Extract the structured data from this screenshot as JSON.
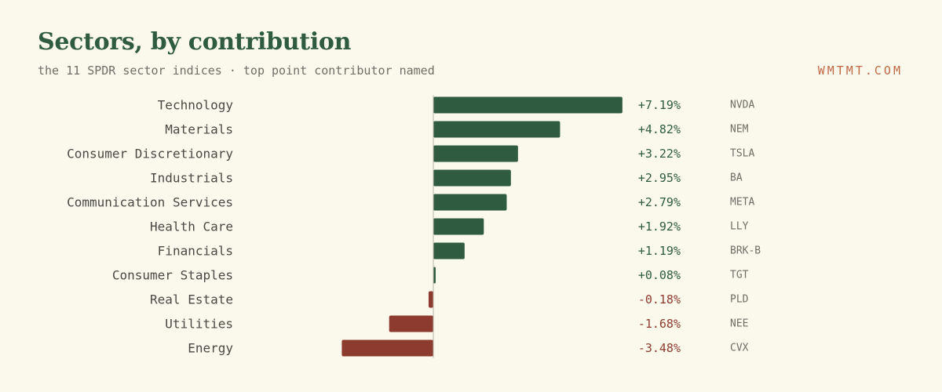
{
  "header": {
    "title": "Sectors, by contribution",
    "subtitle": "the 11 SPDR sector indices · top point contributor named",
    "brand": "WMTMT.COM"
  },
  "colors": {
    "positive": "#2f5c40",
    "negative": "#8e3b2f",
    "background": "#fbf8ec",
    "axis": "#b8b6aa"
  },
  "chart_data": {
    "type": "bar",
    "orientation": "horizontal",
    "categories": [
      "Technology",
      "Materials",
      "Consumer Discretionary",
      "Industrials",
      "Communication Services",
      "Health Care",
      "Financials",
      "Consumer Staples",
      "Real Estate",
      "Utilities",
      "Energy"
    ],
    "values": [
      7.19,
      4.82,
      3.22,
      2.95,
      2.79,
      1.92,
      1.19,
      0.08,
      -0.18,
      -1.68,
      -3.48
    ],
    "value_labels": [
      "+7.19%",
      "+4.82%",
      "+3.22%",
      "+2.95%",
      "+2.79%",
      "+1.92%",
      "+1.19%",
      "+0.08%",
      "-0.18%",
      "-1.68%",
      "-3.48%"
    ],
    "top_contributors": [
      "NVDA",
      "NEM",
      "TSLA",
      "BA",
      "META",
      "LLY",
      "BRK-B",
      "TGT",
      "PLD",
      "NEE",
      "CVX"
    ],
    "xlim": [
      -3.6,
      7.3
    ],
    "grid": false,
    "legend": "none"
  }
}
